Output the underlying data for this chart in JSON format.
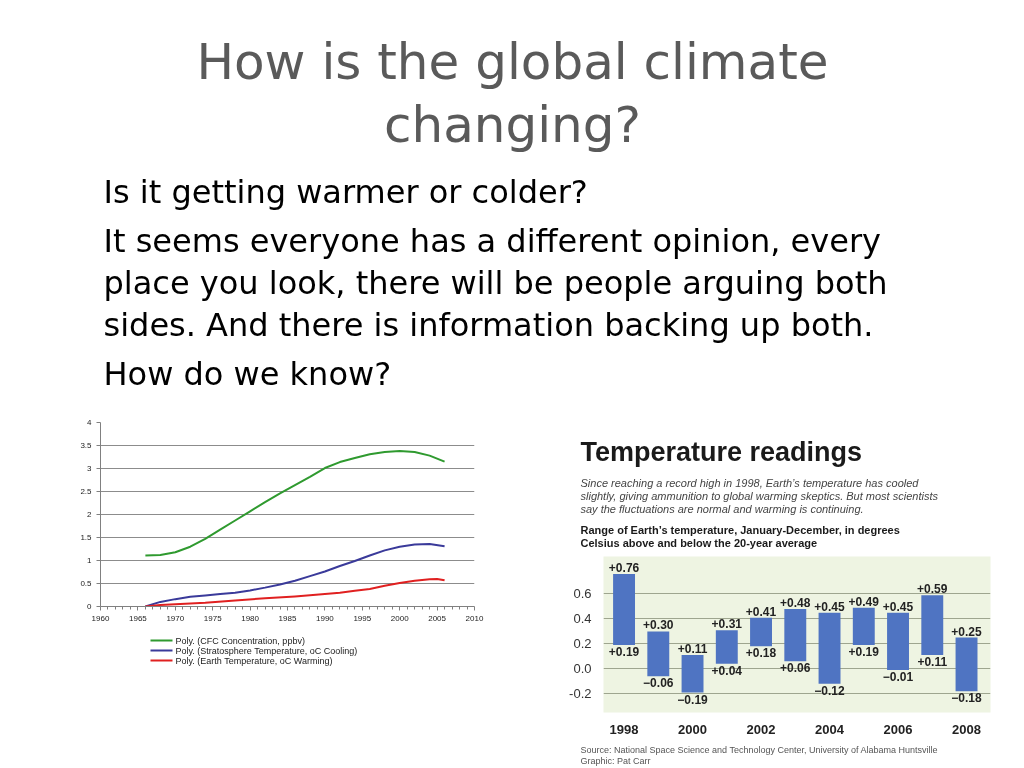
{
  "chart_data": [
    {
      "type": "other",
      "title": "How is the global climate changing?",
      "annotations": [
        "Is it getting warmer or colder?",
        "It seems everyone has a different opinion, every place you look, there will be people arguing both sides. And there is information backing up both.",
        "How do we know?"
      ]
    },
    {
      "type": "line",
      "series": [
        {
          "name": "Poly. (CFC Concentration, ppbv)",
          "color": "#2f9a2f",
          "x": [
            1966,
            1968,
            1970,
            1972,
            1974,
            1976,
            1978,
            1980,
            1982,
            1984,
            1986,
            1988,
            1990,
            1992,
            1994,
            1996,
            1998,
            2000,
            2002,
            2004,
            2006
          ],
          "values": [
            1.11,
            1.12,
            1.18,
            1.3,
            1.47,
            1.67,
            1.87,
            2.07,
            2.27,
            2.46,
            2.64,
            2.82,
            3.01,
            3.14,
            3.23,
            3.31,
            3.36,
            3.38,
            3.36,
            3.28,
            3.15
          ]
        },
        {
          "name": "Poly. (Stratosphere Temperature, oC Cooling)",
          "color": "#3a3a9a",
          "x": [
            1966,
            1968,
            1970,
            1972,
            1974,
            1976,
            1978,
            1980,
            1982,
            1984,
            1986,
            1988,
            1990,
            1992,
            1994,
            1996,
            1998,
            2000,
            2002,
            2004,
            2006
          ],
          "values": [
            0,
            0.1,
            0.16,
            0.21,
            0.24,
            0.27,
            0.3,
            0.35,
            0.41,
            0.48,
            0.56,
            0.66,
            0.76,
            0.88,
            0.99,
            1.11,
            1.22,
            1.3,
            1.35,
            1.36,
            1.31
          ]
        },
        {
          "name": "Poly. (Earth Temperature, oC Warming)",
          "color": "#e02020",
          "x": [
            1966,
            1968,
            1970,
            1974,
            1978,
            1982,
            1986,
            1990,
            1992,
            1994,
            1996,
            1998,
            2000,
            2002,
            2004,
            2005,
            2006
          ],
          "values": [
            0,
            0.03,
            0.05,
            0.08,
            0.13,
            0.18,
            0.22,
            0.27,
            0.3,
            0.34,
            0.38,
            0.45,
            0.51,
            0.56,
            0.59,
            0.6,
            0.57
          ]
        }
      ],
      "xlim": [
        1960,
        2010
      ],
      "ylim": [
        0,
        4
      ],
      "xticks": [
        1960,
        {
          "value": 1961,
          "label": null
        },
        {
          "value": 1962,
          "label": null
        },
        {
          "value": 1963,
          "label": null
        },
        {
          "value": 1964,
          "label": null
        },
        1965,
        {
          "value": 1966,
          "label": null
        },
        {
          "value": 1967,
          "label": null
        },
        {
          "value": 1968,
          "label": null
        },
        {
          "value": 1969,
          "label": null
        },
        1970,
        {
          "value": 1971,
          "label": null
        },
        {
          "value": 1972,
          "label": null
        },
        {
          "value": 1973,
          "label": null
        },
        {
          "value": 1974,
          "label": null
        },
        1975,
        {
          "value": 1976,
          "label": null
        },
        {
          "value": 1977,
          "label": null
        },
        {
          "value": 1978,
          "label": null
        },
        {
          "value": 1979,
          "label": null
        },
        1980,
        {
          "value": 1981,
          "label": null
        },
        {
          "value": 1982,
          "label": null
        },
        {
          "value": 1983,
          "label": null
        },
        {
          "value": 1984,
          "label": null
        },
        1985,
        {
          "value": 1986,
          "label": null
        },
        {
          "value": 1987,
          "label": null
        },
        {
          "value": 1988,
          "label": null
        },
        {
          "value": 1989,
          "label": null
        },
        1990,
        {
          "value": 1991,
          "label": null
        },
        {
          "value": 1992,
          "label": null
        },
        {
          "value": 1993,
          "label": null
        },
        {
          "value": 1994,
          "label": null
        },
        1995,
        {
          "value": 1996,
          "label": null
        },
        {
          "value": 1997,
          "label": null
        },
        {
          "value": 1998,
          "label": null
        },
        {
          "value": 1999,
          "label": null
        },
        2000,
        {
          "value": 2001,
          "label": null
        },
        {
          "value": 2002,
          "label": null
        },
        {
          "value": 2003,
          "label": null
        },
        {
          "value": 2004,
          "label": null
        },
        2005,
        {
          "value": 2006,
          "label": null
        },
        {
          "value": 2007,
          "label": null
        },
        {
          "value": 2008,
          "label": null
        },
        {
          "value": 2009,
          "label": null
        },
        2010
      ],
      "yticks": [
        0,
        0.5,
        1,
        1.5,
        2,
        2.5,
        3,
        3.5,
        4
      ],
      "grid": "y",
      "legend": "bottom"
    },
    {
      "type": "bar",
      "title": "Temperature readings",
      "subtitle": "Since reaching a record high in 1998, Earth’s temperature has cooled slightly, giving ammunition to global warming skeptics. But most scientists say the fluctuations are normal and warming is continuing.",
      "ylabel": "Range of Earth’s temperature, January-December, in degrees Celsius above and below the 20-year average",
      "x": [
        1998,
        1999,
        2000,
        2001,
        2002,
        2003,
        2004,
        2005,
        2006,
        2007,
        2008
      ],
      "base": [
        0.19,
        -0.06,
        -0.19,
        0.04,
        0.18,
        0.06,
        -0.12,
        0.19,
        -0.01,
        0.11,
        -0.18
      ],
      "values": [
        0.57,
        0.36,
        0.3,
        0.27,
        0.23,
        0.42,
        0.57,
        0.3,
        0.46,
        0.48,
        0.43
      ],
      "color": "#4f74c2",
      "xlim": [
        1997.4,
        2008.7
      ],
      "ylim": [
        -0.35,
        0.9
      ],
      "xticks": [
        1998,
        2000,
        2002,
        2004,
        2006,
        2008
      ],
      "yticks": [
        -0.2,
        {
          "value": 0,
          "label": "0.0"
        },
        0.2,
        0.4,
        0.6
      ],
      "grid": "y",
      "annotations": [
        {
          "text": "+0.76",
          "x": 1998,
          "y": 0.76
        },
        {
          "text": "+0.19",
          "x": 1998,
          "y": 0.19
        },
        {
          "text": "+0.30",
          "x": 1999,
          "y": 0.3
        },
        {
          "text": "−0.06",
          "x": 1999,
          "y": -0.06
        },
        {
          "text": "+0.11",
          "x": 2000,
          "y": 0.11
        },
        {
          "text": "−0.19",
          "x": 2000,
          "y": -0.19
        },
        {
          "text": "+0.31",
          "x": 2001,
          "y": 0.31
        },
        {
          "text": "+0.04",
          "x": 2001,
          "y": 0.04
        },
        {
          "text": "+0.41",
          "x": 2002,
          "y": 0.41
        },
        {
          "text": "+0.18",
          "x": 2002,
          "y": 0.18
        },
        {
          "text": "+0.48",
          "x": 2003,
          "y": 0.48
        },
        {
          "text": "+0.06",
          "x": 2003,
          "y": 0.06
        },
        {
          "text": "+0.45",
          "x": 2004,
          "y": 0.45
        },
        {
          "text": "−0.12",
          "x": 2004,
          "y": -0.12
        },
        {
          "text": "+0.49",
          "x": 2005,
          "y": 0.49
        },
        {
          "text": "+0.19",
          "x": 2005,
          "y": 0.19
        },
        {
          "text": "+0.45",
          "x": 2006,
          "y": 0.45
        },
        {
          "text": "−0.01",
          "x": 2006,
          "y": -0.01
        },
        {
          "text": "+0.59",
          "x": 2007,
          "y": 0.59
        },
        {
          "text": "+0.11",
          "x": 2007,
          "y": 0.11
        },
        {
          "text": "+0.25",
          "x": 2008,
          "y": 0.25
        },
        {
          "text": "−0.18",
          "x": 2008,
          "y": -0.18
        },
        "Source: National Space Science and Technology Center, University of Alabama Huntsville",
        "Graphic: Pat Carr"
      ]
    }
  ]
}
